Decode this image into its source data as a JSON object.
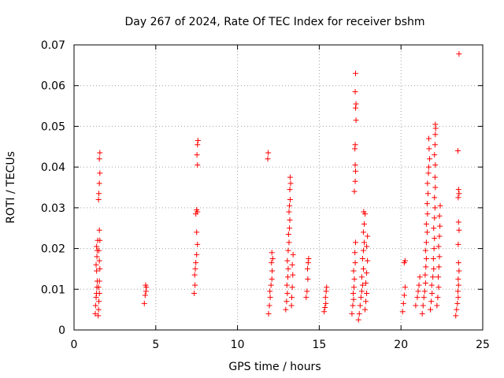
{
  "chart_data": {
    "type": "scatter",
    "title": "Day 267 of 2024, Rate Of TEC Index for receiver bshm",
    "xlabel": "GPS time / hours",
    "ylabel": "ROTI / TECUs",
    "xlim": [
      0,
      25
    ],
    "ylim": [
      0,
      0.07
    ],
    "xticks": [
      0,
      5,
      10,
      15,
      20,
      25
    ],
    "xtick_labels": [
      "0",
      "5",
      "10",
      "15",
      "20",
      "25"
    ],
    "yticks": [
      0,
      0.01,
      0.02,
      0.03,
      0.04,
      0.05,
      0.06,
      0.07
    ],
    "ytick_labels": [
      "0",
      "0.01",
      "0.02",
      "0.03",
      "0.04",
      "0.05",
      "0.06",
      "0.07"
    ],
    "grid": true,
    "legend": "none",
    "marker": "+",
    "color": "#ff0000",
    "series": [
      {
        "points": [
          [
            1.3,
            0.004
          ],
          [
            1.32,
            0.006
          ],
          [
            1.35,
            0.008
          ],
          [
            1.38,
            0.009
          ],
          [
            1.4,
            0.0105
          ],
          [
            1.42,
            0.012
          ],
          [
            1.38,
            0.0145
          ],
          [
            1.35,
            0.016
          ],
          [
            1.4,
            0.018
          ],
          [
            1.42,
            0.0195
          ],
          [
            1.38,
            0.0205
          ],
          [
            1.45,
            0.022
          ],
          [
            1.48,
            0.0035
          ],
          [
            1.5,
            0.005
          ],
          [
            1.52,
            0.007
          ],
          [
            1.55,
            0.009
          ],
          [
            1.5,
            0.0105
          ],
          [
            1.55,
            0.012
          ],
          [
            1.58,
            0.015
          ],
          [
            1.55,
            0.017
          ],
          [
            1.52,
            0.0195
          ],
          [
            1.58,
            0.022
          ],
          [
            1.55,
            0.0245
          ],
          [
            1.5,
            0.032
          ],
          [
            1.52,
            0.0335
          ],
          [
            1.55,
            0.036
          ],
          [
            1.58,
            0.0385
          ],
          [
            1.55,
            0.042
          ],
          [
            1.58,
            0.0435
          ],
          [
            4.3,
            0.0065
          ],
          [
            4.35,
            0.0085
          ],
          [
            4.4,
            0.0095
          ],
          [
            4.42,
            0.0105
          ],
          [
            4.38,
            0.011
          ],
          [
            7.35,
            0.009
          ],
          [
            7.4,
            0.011
          ],
          [
            7.38,
            0.0135
          ],
          [
            7.42,
            0.015
          ],
          [
            7.45,
            0.0165
          ],
          [
            7.5,
            0.0185
          ],
          [
            7.55,
            0.021
          ],
          [
            7.5,
            0.024
          ],
          [
            7.45,
            0.0285
          ],
          [
            7.5,
            0.0295
          ],
          [
            7.55,
            0.029
          ],
          [
            7.55,
            0.0405
          ],
          [
            7.52,
            0.043
          ],
          [
            7.55,
            0.0455
          ],
          [
            7.58,
            0.0465
          ],
          [
            11.85,
            0.042
          ],
          [
            11.88,
            0.0435
          ],
          [
            11.9,
            0.004
          ],
          [
            11.95,
            0.006
          ],
          [
            12.0,
            0.008
          ],
          [
            11.98,
            0.0095
          ],
          [
            12.05,
            0.011
          ],
          [
            12.1,
            0.0125
          ],
          [
            12.12,
            0.0145
          ],
          [
            12.08,
            0.0165
          ],
          [
            12.15,
            0.0175
          ],
          [
            12.1,
            0.019
          ],
          [
            12.95,
            0.005
          ],
          [
            13.0,
            0.007
          ],
          [
            13.05,
            0.009
          ],
          [
            13.02,
            0.011
          ],
          [
            13.08,
            0.013
          ],
          [
            13.1,
            0.015
          ],
          [
            13.05,
            0.017
          ],
          [
            13.1,
            0.0195
          ],
          [
            13.15,
            0.0215
          ],
          [
            13.12,
            0.0235
          ],
          [
            13.18,
            0.025
          ],
          [
            13.2,
            0.027
          ],
          [
            13.15,
            0.029
          ],
          [
            13.18,
            0.0305
          ],
          [
            13.22,
            0.032
          ],
          [
            13.2,
            0.0345
          ],
          [
            13.25,
            0.036
          ],
          [
            13.22,
            0.0375
          ],
          [
            13.3,
            0.006
          ],
          [
            13.32,
            0.008
          ],
          [
            13.35,
            0.0105
          ],
          [
            13.38,
            0.0135
          ],
          [
            13.35,
            0.016
          ],
          [
            13.4,
            0.0185
          ],
          [
            14.2,
            0.008
          ],
          [
            14.25,
            0.0095
          ],
          [
            14.3,
            0.0125
          ],
          [
            14.28,
            0.015
          ],
          [
            14.32,
            0.0165
          ],
          [
            14.35,
            0.0175
          ],
          [
            15.3,
            0.0045
          ],
          [
            15.35,
            0.0055
          ],
          [
            15.4,
            0.0065
          ],
          [
            15.38,
            0.008
          ],
          [
            15.42,
            0.0095
          ],
          [
            15.45,
            0.0105
          ],
          [
            17.0,
            0.004
          ],
          [
            17.05,
            0.006
          ],
          [
            17.1,
            0.0075
          ],
          [
            17.08,
            0.009
          ],
          [
            17.12,
            0.0105
          ],
          [
            17.15,
            0.0125
          ],
          [
            17.1,
            0.0145
          ],
          [
            17.2,
            0.0165
          ],
          [
            17.18,
            0.019
          ],
          [
            17.22,
            0.0215
          ],
          [
            17.15,
            0.034
          ],
          [
            17.2,
            0.0365
          ],
          [
            17.22,
            0.039
          ],
          [
            17.2,
            0.0405
          ],
          [
            17.18,
            0.0445
          ],
          [
            17.2,
            0.0455
          ],
          [
            17.25,
            0.0515
          ],
          [
            17.22,
            0.0545
          ],
          [
            17.25,
            0.0555
          ],
          [
            17.2,
            0.0585
          ],
          [
            17.22,
            0.063
          ],
          [
            17.4,
            0.0025
          ],
          [
            17.45,
            0.004
          ],
          [
            17.5,
            0.006
          ],
          [
            17.55,
            0.008
          ],
          [
            17.6,
            0.0095
          ],
          [
            17.65,
            0.011
          ],
          [
            17.6,
            0.013
          ],
          [
            17.7,
            0.015
          ],
          [
            17.65,
            0.0175
          ],
          [
            17.7,
            0.0195
          ],
          [
            17.75,
            0.0215
          ],
          [
            17.7,
            0.024
          ],
          [
            17.75,
            0.026
          ],
          [
            17.8,
            0.0285
          ],
          [
            17.72,
            0.029
          ],
          [
            17.8,
            0.005
          ],
          [
            17.85,
            0.007
          ],
          [
            17.9,
            0.009
          ],
          [
            17.85,
            0.0115
          ],
          [
            17.9,
            0.014
          ],
          [
            17.95,
            0.017
          ],
          [
            17.9,
            0.0205
          ],
          [
            17.95,
            0.023
          ],
          [
            20.1,
            0.0045
          ],
          [
            20.15,
            0.0065
          ],
          [
            20.2,
            0.0085
          ],
          [
            20.25,
            0.0105
          ],
          [
            20.2,
            0.0165
          ],
          [
            20.25,
            0.017
          ],
          [
            20.9,
            0.006
          ],
          [
            21.0,
            0.008
          ],
          [
            21.05,
            0.0095
          ],
          [
            21.1,
            0.011
          ],
          [
            21.15,
            0.013
          ],
          [
            21.3,
            0.004
          ],
          [
            21.35,
            0.006
          ],
          [
            21.4,
            0.008
          ],
          [
            21.45,
            0.0095
          ],
          [
            21.5,
            0.0115
          ],
          [
            21.48,
            0.0135
          ],
          [
            21.52,
            0.0155
          ],
          [
            21.55,
            0.0175
          ],
          [
            21.5,
            0.0195
          ],
          [
            21.55,
            0.0215
          ],
          [
            21.6,
            0.024
          ],
          [
            21.55,
            0.026
          ],
          [
            21.62,
            0.0285
          ],
          [
            21.6,
            0.031
          ],
          [
            21.65,
            0.0335
          ],
          [
            21.62,
            0.036
          ],
          [
            21.68,
            0.0385
          ],
          [
            21.7,
            0.04
          ],
          [
            21.7,
            0.047
          ],
          [
            21.72,
            0.0445
          ],
          [
            21.75,
            0.042
          ],
          [
            21.8,
            0.005
          ],
          [
            21.85,
            0.007
          ],
          [
            21.9,
            0.009
          ],
          [
            21.88,
            0.011
          ],
          [
            21.95,
            0.013
          ],
          [
            22.0,
            0.015
          ],
          [
            21.98,
            0.0175
          ],
          [
            22.02,
            0.02
          ],
          [
            22.05,
            0.0225
          ],
          [
            22.0,
            0.025
          ],
          [
            22.05,
            0.0275
          ],
          [
            22.08,
            0.03
          ],
          [
            22.05,
            0.0325
          ],
          [
            22.1,
            0.035
          ],
          [
            22.08,
            0.0375
          ],
          [
            22.1,
            0.0405
          ],
          [
            22.05,
            0.043
          ],
          [
            22.08,
            0.0455
          ],
          [
            22.1,
            0.048
          ],
          [
            22.12,
            0.0495
          ],
          [
            22.1,
            0.0505
          ],
          [
            22.2,
            0.006
          ],
          [
            22.25,
            0.008
          ],
          [
            22.3,
            0.0105
          ],
          [
            22.28,
            0.013
          ],
          [
            22.32,
            0.0155
          ],
          [
            22.35,
            0.018
          ],
          [
            22.3,
            0.0205
          ],
          [
            22.35,
            0.023
          ],
          [
            22.38,
            0.0255
          ],
          [
            22.35,
            0.028
          ],
          [
            22.4,
            0.0305
          ],
          [
            23.35,
            0.0035
          ],
          [
            23.4,
            0.005
          ],
          [
            23.45,
            0.0065
          ],
          [
            23.5,
            0.008
          ],
          [
            23.48,
            0.0095
          ],
          [
            23.52,
            0.011
          ],
          [
            23.5,
            0.0125
          ],
          [
            23.55,
            0.0145
          ],
          [
            23.52,
            0.0165
          ],
          [
            23.5,
            0.021
          ],
          [
            23.55,
            0.0245
          ],
          [
            23.52,
            0.0265
          ],
          [
            23.5,
            0.0325
          ],
          [
            23.55,
            0.0335
          ],
          [
            23.52,
            0.0345
          ],
          [
            23.48,
            0.044
          ],
          [
            23.55,
            0.0678
          ]
        ]
      }
    ]
  }
}
